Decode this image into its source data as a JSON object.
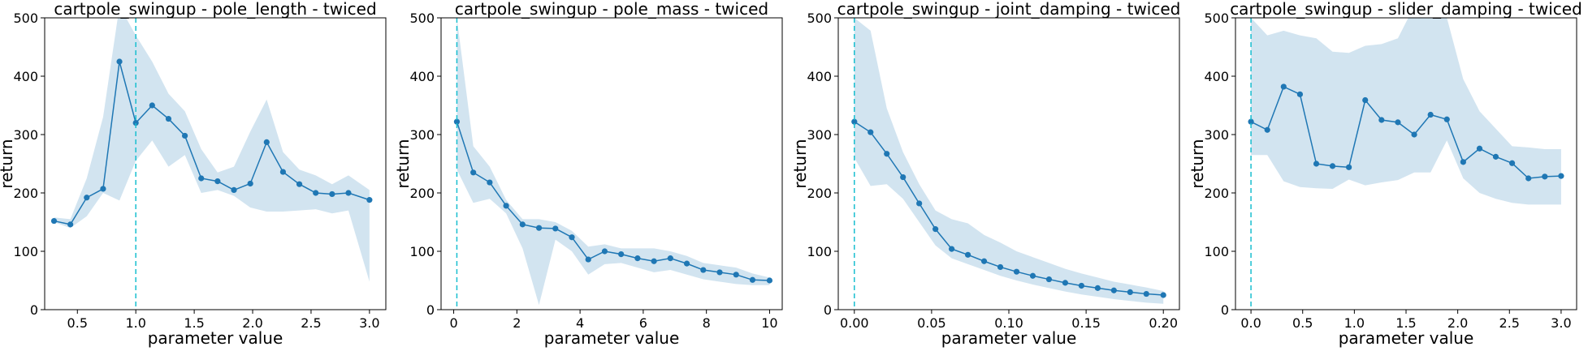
{
  "chart_data": [
    {
      "type": "line",
      "title": "cartpole_swingup - pole_length - twiced",
      "xlabel": "parameter value",
      "ylabel": "return",
      "xlim": [
        0.22,
        3.14
      ],
      "ylim": [
        0,
        500
      ],
      "xticks": [
        0.5,
        1.0,
        1.5,
        2.0,
        2.5,
        3.0
      ],
      "xtick_labels": [
        "0.5",
        "1.0",
        "1.5",
        "2.0",
        "2.5",
        "3.0"
      ],
      "yticks": [
        0,
        100,
        200,
        300,
        400,
        500
      ],
      "ytick_labels": [
        "0",
        "100",
        "200",
        "300",
        "400",
        "500"
      ],
      "reference_x": 1.0,
      "series": [
        {
          "x": [
            0.3,
            0.44,
            0.58,
            0.72,
            0.86,
            1.0,
            1.14,
            1.28,
            1.42,
            1.56,
            1.7,
            1.84,
            1.98,
            2.12,
            2.26,
            2.4,
            2.54,
            2.68,
            2.82,
            3.0
          ],
          "y": [
            152,
            146,
            192,
            207,
            425,
            320,
            350,
            327,
            298,
            225,
            220,
            205,
            216,
            287,
            236,
            215,
            200,
            198,
            200,
            188
          ],
          "lower": [
            150,
            140,
            160,
            200,
            187,
            255,
            290,
            245,
            265,
            200,
            205,
            195,
            175,
            168,
            168,
            170,
            172,
            165,
            170,
            48
          ],
          "upper": [
            158,
            155,
            225,
            330,
            520,
            470,
            425,
            370,
            340,
            275,
            235,
            245,
            305,
            360,
            270,
            240,
            230,
            215,
            230,
            205
          ]
        }
      ]
    },
    {
      "type": "line",
      "title": "cartpole_swingup - pole_mass - twiced",
      "xlabel": "parameter value",
      "ylabel": "return",
      "xlim": [
        -0.4,
        10.4
      ],
      "ylim": [
        0,
        500
      ],
      "xticks": [
        0,
        2,
        4,
        6,
        8,
        10
      ],
      "xtick_labels": [
        "0",
        "2",
        "4",
        "6",
        "8",
        "10"
      ],
      "yticks": [
        0,
        100,
        200,
        300,
        400,
        500
      ],
      "ytick_labels": [
        "0",
        "100",
        "200",
        "300",
        "400",
        "500"
      ],
      "reference_x": 0.1,
      "series": [
        {
          "x": [
            0.1,
            0.62,
            1.14,
            1.66,
            2.18,
            2.7,
            3.22,
            3.74,
            4.26,
            4.78,
            5.3,
            5.82,
            6.34,
            6.86,
            7.38,
            7.9,
            8.42,
            8.94,
            9.46,
            10.0
          ],
          "y": [
            322,
            235,
            218,
            178,
            146,
            140,
            139,
            124,
            86,
            100,
            95,
            88,
            83,
            88,
            79,
            68,
            64,
            60,
            51,
            50
          ],
          "lower": [
            240,
            183,
            190,
            165,
            105,
            8,
            120,
            100,
            60,
            78,
            80,
            72,
            64,
            68,
            60,
            52,
            48,
            44,
            42,
            42
          ],
          "upper": [
            500,
            280,
            245,
            188,
            155,
            155,
            150,
            135,
            108,
            112,
            105,
            105,
            105,
            100,
            92,
            80,
            76,
            72,
            62,
            55
          ]
        }
      ]
    },
    {
      "type": "line",
      "title": "cartpole_swingup - joint_damping - twiced",
      "xlabel": "parameter value",
      "ylabel": "return",
      "xlim": [
        -0.0104,
        0.2104
      ],
      "ylim": [
        0,
        500
      ],
      "xticks": [
        0.0,
        0.05,
        0.1,
        0.15,
        0.2
      ],
      "xtick_labels": [
        "0.00",
        "0.05",
        "0.10",
        "0.15",
        "0.20"
      ],
      "yticks": [
        0,
        100,
        200,
        300,
        400,
        500
      ],
      "ytick_labels": [
        "0",
        "100",
        "200",
        "300",
        "400",
        "500"
      ],
      "reference_x": 0.0,
      "series": [
        {
          "x": [
            0.0,
            0.0105,
            0.021,
            0.0315,
            0.042,
            0.0525,
            0.063,
            0.0735,
            0.084,
            0.0945,
            0.105,
            0.1155,
            0.126,
            0.1365,
            0.147,
            0.1575,
            0.168,
            0.1785,
            0.189,
            0.2
          ],
          "y": [
            322,
            304,
            267,
            227,
            182,
            138,
            104,
            94,
            83,
            73,
            65,
            58,
            52,
            46,
            41,
            37,
            33,
            30,
            27,
            25
          ],
          "lower": [
            260,
            212,
            215,
            190,
            150,
            110,
            88,
            78,
            68,
            58,
            50,
            43,
            37,
            31,
            26,
            22,
            18,
            15,
            12,
            10
          ],
          "upper": [
            500,
            478,
            345,
            270,
            215,
            170,
            155,
            148,
            128,
            115,
            100,
            90,
            80,
            70,
            62,
            55,
            48,
            43,
            38,
            32
          ]
        }
      ]
    },
    {
      "type": "line",
      "title": "cartpole_swingup - slider_damping - twiced",
      "xlabel": "parameter value",
      "ylabel": "return",
      "xlim": [
        -0.15,
        3.15
      ],
      "ylim": [
        0,
        500
      ],
      "xticks": [
        0.0,
        0.5,
        1.0,
        1.5,
        2.0,
        2.5,
        3.0
      ],
      "xtick_labels": [
        "0.0",
        "0.5",
        "1.0",
        "1.5",
        "2.0",
        "2.5",
        "3.0"
      ],
      "yticks": [
        0,
        100,
        200,
        300,
        400,
        500
      ],
      "ytick_labels": [
        "0",
        "100",
        "200",
        "300",
        "400",
        "500"
      ],
      "reference_x": 0.0,
      "series": [
        {
          "x": [
            0.0,
            0.158,
            0.316,
            0.474,
            0.632,
            0.789,
            0.947,
            1.105,
            1.263,
            1.421,
            1.579,
            1.737,
            1.895,
            2.053,
            2.211,
            2.368,
            2.526,
            2.684,
            2.842,
            3.0
          ],
          "y": [
            322,
            308,
            382,
            369,
            250,
            246,
            244,
            359,
            325,
            321,
            300,
            334,
            326,
            253,
            276,
            262,
            251,
            225,
            228,
            229
          ],
          "lower": [
            265,
            265,
            220,
            210,
            208,
            207,
            223,
            213,
            218,
            222,
            235,
            235,
            290,
            225,
            200,
            190,
            183,
            180,
            180,
            180
          ],
          "upper": [
            500,
            470,
            478,
            470,
            465,
            442,
            440,
            452,
            455,
            465,
            520,
            520,
            500,
            395,
            340,
            310,
            280,
            278,
            275,
            275
          ]
        }
      ]
    }
  ]
}
